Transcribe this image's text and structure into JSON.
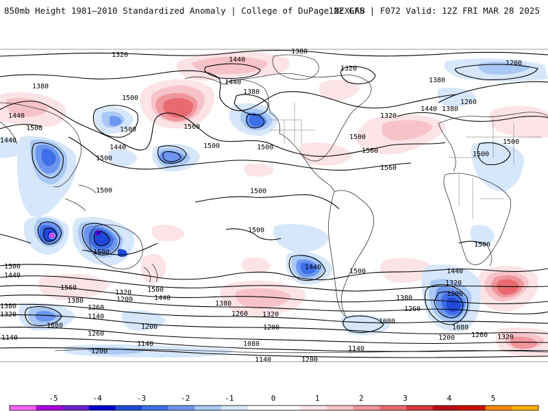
{
  "header": {
    "title": "850mb Height 1981–2010 Standardized Anomaly | College of DuPage NEXLAB",
    "run_info": "12Z GFS | F072 Valid: 12Z FRI MAR 28 2025"
  },
  "colorbar": {
    "ticks": [
      "-5",
      "-4",
      "-3",
      "-2",
      "-1",
      "0",
      "1",
      "2",
      "3",
      "4",
      "5"
    ],
    "colors": {
      "m5": "#ff66ff",
      "m45": "#aa00dd",
      "m4": "#6a1fc9",
      "m35": "#0000cc",
      "m3": "#1f49d6",
      "m25": "#3f6fe6",
      "m2": "#6d96ef",
      "m15": "#a9c8f5",
      "m1": "#d7e7fb",
      "zero": "#ffffff",
      "p1": "#fbe3e6",
      "p15": "#f7c3c8",
      "p2": "#f0969d",
      "p25": "#e86a70",
      "p3": "#d93a3a",
      "p35": "#b80f0f",
      "p4": "#cc1100",
      "p45": "#ff8800",
      "p5": "#ffb000"
    }
  },
  "contour_labels": {
    "l1320a": "1320",
    "l1380a": "1380",
    "l1440a": "1440",
    "l1380b": "1380",
    "l1320b": "1320",
    "l1200a": "1200",
    "l1380c": "1380",
    "l1380d": "1380",
    "l1440b": "1440",
    "l1500a": "1500",
    "l1440c": "1440",
    "l1260a": "1260",
    "l1380e": "1380",
    "l1320c": "1320",
    "l1440d": "1440",
    "l1560a": "1560",
    "l1500b": "1500",
    "l1500c": "1500",
    "l1440e": "1440",
    "l1500d": "1500",
    "l1560b": "1560",
    "l1500e": "1500",
    "l1560c": "1560",
    "l1500f": "1500",
    "l1440f": "1440",
    "l1500g": "1500",
    "l1500h": "1500",
    "l1500i": "1500",
    "l1500j": "1500",
    "l1500k": "1500",
    "l1500l": "1500",
    "l1500m": "1500",
    "l1440g": "1440",
    "l1500n": "1500",
    "l1440h": "1440",
    "l1500o": "1500",
    "l1440i": "1440",
    "l1320d": "1320",
    "l1500p": "1500",
    "l1560d": "1560",
    "l1320e": "1320",
    "l1200b": "1200",
    "l1380f": "1380",
    "l1260b": "1260",
    "l1140a": "1140",
    "l1440j": "1440",
    "l1500q": "1500",
    "l1380g": "1380",
    "l1260c": "1260",
    "l1320f": "1320",
    "l1200c": "1200",
    "l1380h": "1380",
    "l1260d": "1260",
    "l1200d": "1200",
    "l1080a": "1080",
    "l1260e": "1260",
    "l1320g": "1320",
    "l1080b": "1080",
    "l1140b": "1140",
    "l1260f": "1260",
    "l1140c": "1140",
    "l1080c": "1080",
    "l1140d": "1140",
    "l1200e": "1200",
    "l1200f": "1200",
    "l1140e": "1140",
    "l1200g": "1200",
    "l1080d": "1080",
    "l1200h": "1200",
    "l1380i": "1380",
    "l1320h": "1320"
  }
}
